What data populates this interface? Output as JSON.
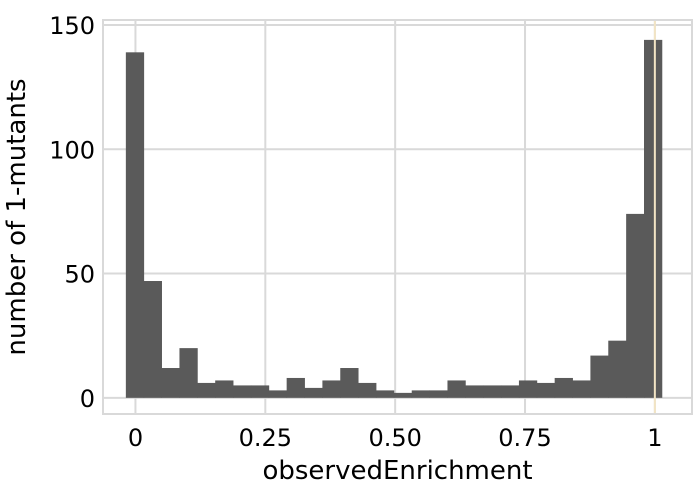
{
  "chart_data": {
    "type": "bar",
    "xlabel": "observedEnrichment",
    "ylabel": "number of 1-mutants",
    "xlim": [
      -0.0625,
      1.0715
    ],
    "ylim": [
      -6.5,
      152
    ],
    "grid": true,
    "x_ticks": [
      {
        "value": 0,
        "label": "0"
      },
      {
        "value": 0.25,
        "label": "0.25"
      },
      {
        "value": 0.5,
        "label": "0.50"
      },
      {
        "value": 0.75,
        "label": "0.75"
      },
      {
        "value": 1,
        "label": "1"
      }
    ],
    "y_ticks": [
      {
        "value": 0,
        "label": "0"
      },
      {
        "value": 50,
        "label": "50"
      },
      {
        "value": 100,
        "label": "100"
      },
      {
        "value": 150,
        "label": "150"
      }
    ],
    "bin_start": -0.0185,
    "bin_width": 0.0344,
    "values": [
      139,
      47,
      12,
      20,
      6,
      7,
      5,
      5,
      3,
      8,
      4,
      7,
      12,
      6,
      3,
      2,
      3,
      3,
      7,
      5,
      5,
      5,
      7,
      6,
      8,
      7,
      17,
      23,
      74,
      144
    ],
    "reference_line_x": 1,
    "colors": {
      "bar": "#5a5a5a",
      "grid": "#d9d9d9",
      "frame": "#d9d9d9",
      "reference_line": "#f2e4c4"
    }
  }
}
